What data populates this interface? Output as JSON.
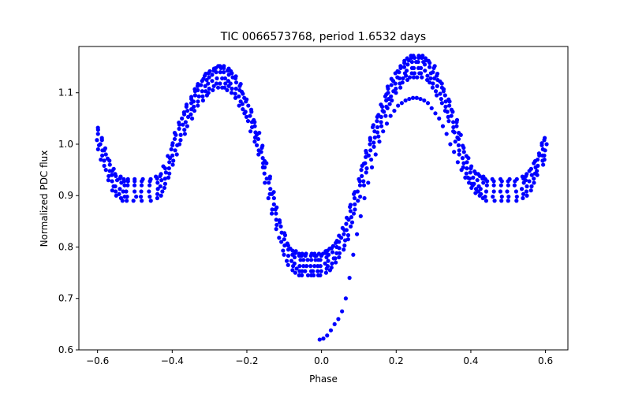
{
  "chart_data": {
    "type": "scatter",
    "title": "TIC 0066573768, period 1.6532 days",
    "xlabel": "Phase",
    "ylabel": "Normalized PDC flux",
    "xlim": [
      -0.65,
      0.66
    ],
    "ylim": [
      0.6,
      1.19
    ],
    "xticks": [
      -0.6,
      -0.4,
      -0.2,
      0.0,
      0.2,
      0.4,
      0.6
    ],
    "xtick_labels": [
      "−0.6",
      "−0.4",
      "−0.2",
      "0.0",
      "0.2",
      "0.4",
      "0.6"
    ],
    "yticks": [
      0.6,
      0.7,
      0.8,
      0.9,
      1.0,
      1.1
    ],
    "ytick_labels": [
      "0.6",
      "0.7",
      "0.8",
      "0.9",
      "1.0",
      "1.1"
    ],
    "grid": false,
    "marker_color": "#0000ff",
    "series": [
      {
        "style": "dense",
        "x": [
          -0.6,
          -0.59,
          -0.58,
          -0.57,
          -0.56,
          -0.55,
          -0.54,
          -0.53,
          -0.52,
          -0.5,
          -0.48,
          -0.46,
          -0.44,
          -0.43,
          -0.42,
          -0.41,
          -0.4,
          -0.39,
          -0.38,
          -0.37,
          -0.36,
          -0.35,
          -0.34,
          -0.33,
          -0.32,
          -0.31,
          -0.3,
          -0.29,
          -0.28,
          -0.27,
          -0.26,
          -0.25,
          -0.24,
          -0.23,
          -0.22,
          -0.21,
          -0.2,
          -0.19,
          -0.18,
          -0.17,
          -0.16,
          -0.15,
          -0.14,
          -0.13,
          -0.12,
          -0.11,
          -0.1,
          -0.09,
          -0.08,
          -0.07,
          -0.06,
          -0.05,
          -0.04,
          -0.03,
          -0.02,
          -0.01,
          0.0,
          0.01,
          0.02,
          0.03,
          0.04,
          0.05,
          0.06,
          0.07,
          0.08,
          0.09,
          0.1,
          0.11,
          0.12,
          0.13,
          0.14,
          0.15,
          0.16,
          0.17,
          0.18,
          0.19,
          0.2,
          0.21,
          0.22,
          0.23,
          0.24,
          0.25,
          0.26,
          0.27,
          0.28,
          0.29,
          0.3,
          0.31,
          0.32,
          0.33,
          0.34,
          0.35,
          0.36,
          0.37,
          0.38,
          0.39,
          0.4,
          0.41,
          0.42,
          0.43,
          0.44,
          0.46,
          0.48,
          0.5,
          0.52,
          0.54,
          0.55,
          0.56,
          0.57,
          0.58,
          0.59,
          0.6
        ],
        "y": [
          1.02,
          1.0,
          0.98,
          0.96,
          0.94,
          0.93,
          0.925,
          0.92,
          0.92,
          0.92,
          0.92,
          0.92,
          0.925,
          0.93,
          0.945,
          0.965,
          0.99,
          1.01,
          1.03,
          1.05,
          1.065,
          1.08,
          1.095,
          1.105,
          1.115,
          1.125,
          1.13,
          1.135,
          1.14,
          1.14,
          1.14,
          1.135,
          1.13,
          1.12,
          1.105,
          1.09,
          1.075,
          1.055,
          1.035,
          1.01,
          0.985,
          0.955,
          0.925,
          0.895,
          0.865,
          0.84,
          0.815,
          0.795,
          0.785,
          0.78,
          0.775,
          0.775,
          0.775,
          0.775,
          0.775,
          0.775,
          0.775,
          0.78,
          0.785,
          0.79,
          0.8,
          0.81,
          0.825,
          0.845,
          0.87,
          0.895,
          0.92,
          0.95,
          0.975,
          1.0,
          1.025,
          1.045,
          1.065,
          1.085,
          1.1,
          1.115,
          1.13,
          1.14,
          1.15,
          1.155,
          1.16,
          1.16,
          1.16,
          1.16,
          1.155,
          1.15,
          1.14,
          1.125,
          1.11,
          1.095,
          1.075,
          1.055,
          1.035,
          1.01,
          0.985,
          0.965,
          0.945,
          0.935,
          0.93,
          0.925,
          0.92,
          0.92,
          0.92,
          0.92,
          0.92,
          0.925,
          0.93,
          0.94,
          0.955,
          0.97,
          0.99,
          1.0
        ]
      },
      {
        "style": "sparse",
        "x": [
          -0.005,
          0.005,
          0.015,
          0.025,
          0.035,
          0.045,
          0.055,
          0.065,
          0.075,
          0.085,
          0.095,
          0.105,
          0.115,
          0.125,
          0.135,
          0.145,
          0.155,
          0.165,
          0.175,
          0.185,
          0.195,
          0.205,
          0.215,
          0.225,
          0.235,
          0.245,
          0.255,
          0.265,
          0.275,
          0.285,
          0.295,
          0.305,
          0.315,
          0.325,
          0.335,
          0.345,
          0.355,
          0.365,
          0.375,
          0.385,
          0.395,
          0.405
        ],
        "y": [
          0.62,
          0.622,
          0.628,
          0.638,
          0.65,
          0.66,
          0.675,
          0.7,
          0.74,
          0.785,
          0.825,
          0.86,
          0.895,
          0.925,
          0.955,
          0.98,
          1.005,
          1.025,
          1.04,
          1.055,
          1.065,
          1.075,
          1.08,
          1.085,
          1.088,
          1.09,
          1.09,
          1.088,
          1.085,
          1.08,
          1.07,
          1.06,
          1.05,
          1.035,
          1.02,
          1.0,
          0.985,
          0.965,
          0.95,
          0.935,
          0.925,
          0.92
        ]
      }
    ]
  }
}
